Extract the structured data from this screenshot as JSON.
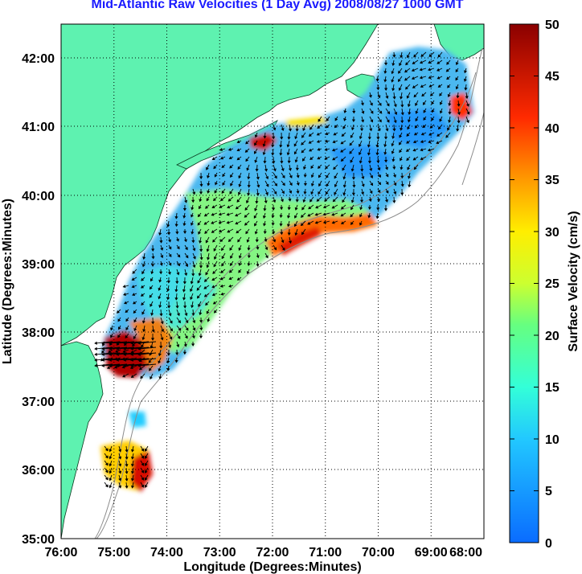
{
  "title": "Mid-Atlantic Raw Velocities (1 Day Avg) 2008/08/27 1000 GMT",
  "xlabel": "Longitude (Degrees:Minutes)",
  "ylabel": "Latitude (Degrees:Minutes)",
  "x_ticks": [
    "76:00",
    "75:00",
    "74:00",
    "73:00",
    "72:00",
    "71:00",
    "70:00",
    "69:00",
    "68:00"
  ],
  "y_ticks": [
    "42:00",
    "41:00",
    "40:00",
    "39:00",
    "38:00",
    "37:00",
    "36:00",
    "35:00"
  ],
  "colorbar": {
    "label": "Surface Velocity (cm/s)",
    "ticks": [
      "50",
      "45",
      "40",
      "35",
      "30",
      "25",
      "20",
      "15",
      "10",
      "5",
      "0"
    ],
    "range": [
      0,
      50
    ]
  },
  "map_data": {
    "lon_range": [
      -76,
      -68
    ],
    "lat_range": [
      35,
      42.5
    ],
    "grid": "dotted",
    "land_color": "#5ef2b0"
  }
}
